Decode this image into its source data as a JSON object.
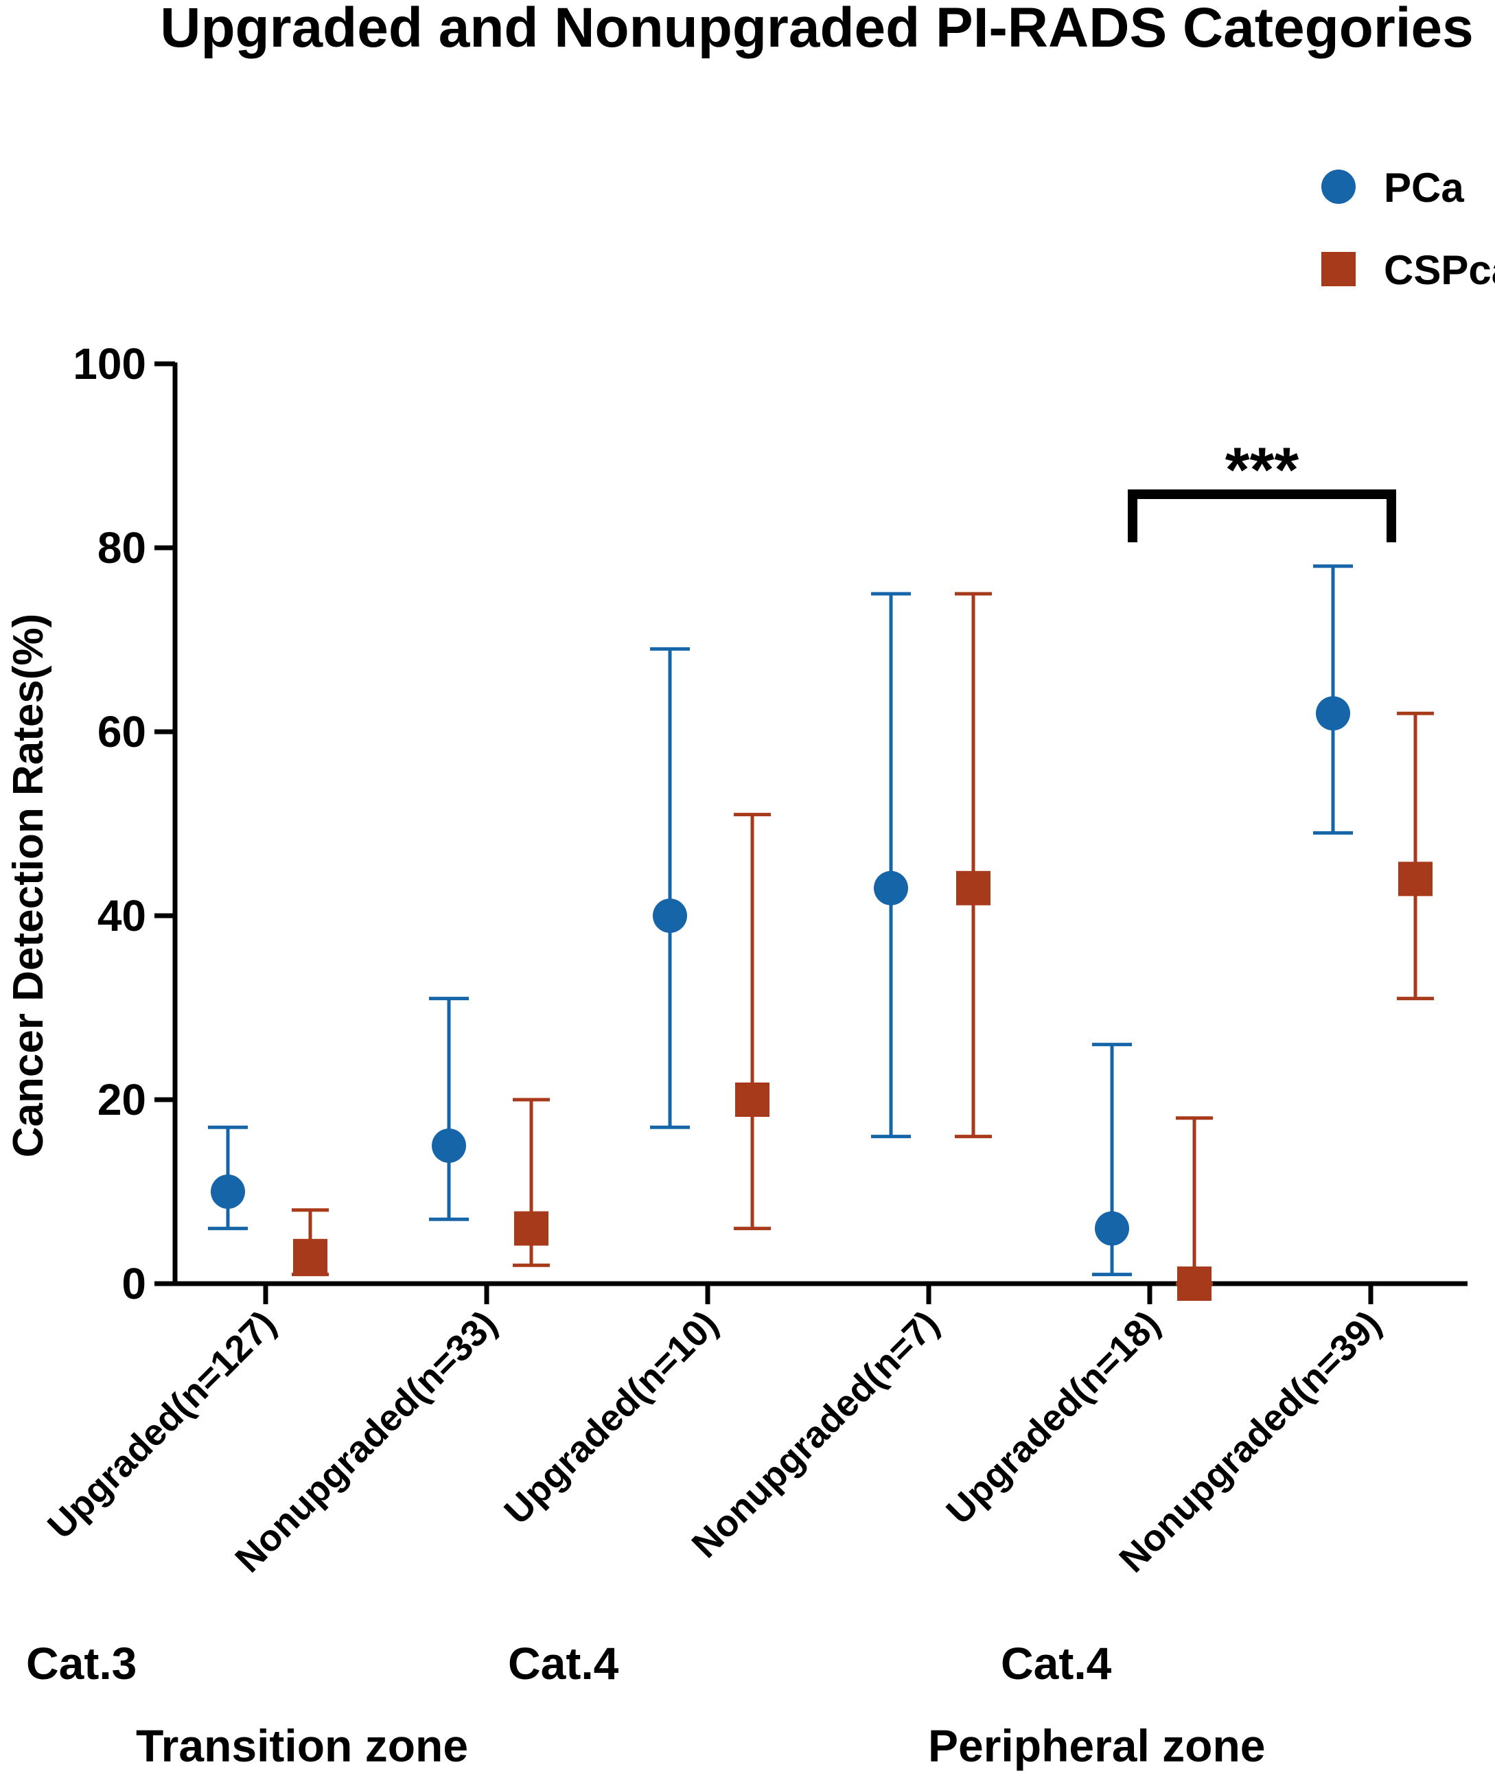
{
  "chart_data": {
    "type": "scatter",
    "title": "Upgraded and Nonupgraded PI-RADS Categories",
    "xlabel": "",
    "ylabel": "Cancer Detection Rates(%)",
    "ylim": [
      0,
      100
    ],
    "yticks": [
      0,
      20,
      40,
      60,
      80,
      100
    ],
    "categories": [
      "Upgraded(n=127)",
      "Nonupgraded(n=33)",
      "Upgraded(n=10)",
      "Nonupgraded(n=7)",
      "Upgraded(n=18)",
      "Nonupgraded(n=39)"
    ],
    "series": [
      {
        "name": "PCa",
        "marker": "circle",
        "color": "#1565a8",
        "values": [
          10,
          15,
          40,
          43,
          6,
          62
        ],
        "ci_low": [
          6,
          7,
          17,
          16,
          1,
          49
        ],
        "ci_high": [
          17,
          31,
          69,
          75,
          26,
          78
        ]
      },
      {
        "name": "CSPca",
        "marker": "square",
        "color": "#a83a1c",
        "values": [
          3,
          6,
          20,
          43,
          0,
          44
        ],
        "ci_low": [
          1,
          2,
          6,
          16,
          0,
          31
        ],
        "ci_high": [
          8,
          20,
          51,
          75,
          18,
          62
        ]
      }
    ],
    "legend": {
      "position": "top-right",
      "entries": [
        "PCa",
        "CSPca"
      ]
    },
    "category_groups": [
      {
        "label": "Cat.3",
        "from": 0,
        "to": 1
      },
      {
        "label": "Cat.4",
        "from": 1,
        "to": 2
      },
      {
        "label": "Cat.4",
        "from": 4,
        "to": 5
      }
    ],
    "zone_groups": [
      {
        "label": "Transition zone",
        "from": 0,
        "to": 3
      },
      {
        "label": "Peripheral zone",
        "from": 4,
        "to": 5
      }
    ],
    "significance": [
      {
        "from": 4,
        "to": 5,
        "label": "***"
      }
    ]
  }
}
